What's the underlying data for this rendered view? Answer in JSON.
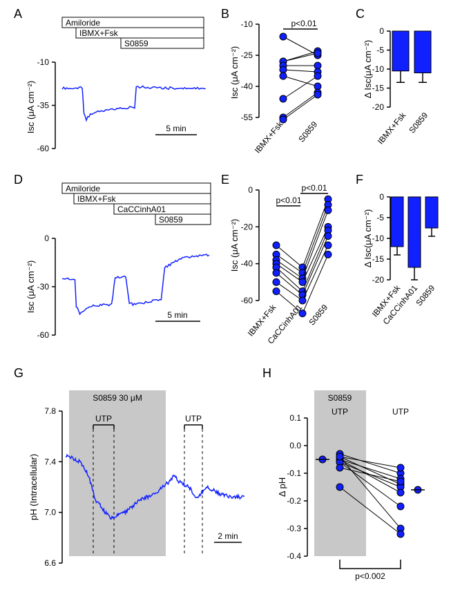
{
  "labels": {
    "A": "A",
    "B": "B",
    "C": "C",
    "D": "D",
    "E": "E",
    "F": "F",
    "G": "G",
    "H": "H",
    "isc_label": "Isc (μA cm⁻²)",
    "disc_label": "Δ Isc(μA cm⁻²)",
    "ph_label": "pH (Intracellular)",
    "dph_label": "Δ pH",
    "five_min": "5 min",
    "two_min": "2 min",
    "amiloride": "Amiloride",
    "ibmxfsk": "IBMX+Fsk",
    "s0859": "S0859",
    "caccinh": "CaCCinhA01",
    "s0859_30": "S0859 30 μM",
    "utp": "UTP",
    "p001": "p<0.01",
    "p0002": "p<0.002"
  },
  "panelA": {
    "y_ticks": [
      -10,
      -35,
      -60
    ],
    "trace": [
      [
        0,
        -25
      ],
      [
        25,
        -25
      ],
      [
        27,
        -40
      ],
      [
        30,
        -43
      ],
      [
        35,
        -40
      ],
      [
        50,
        -38
      ],
      [
        70,
        -37
      ],
      [
        90,
        -36
      ],
      [
        92,
        -24
      ],
      [
        120,
        -25
      ],
      [
        150,
        -25
      ],
      [
        180,
        -25
      ]
    ]
  },
  "panelB": {
    "y_ticks": [
      -10,
      -25,
      -40,
      -55
    ],
    "groups": [
      "IBMX+Fsk",
      "S0859"
    ],
    "pairs": [
      [
        -16,
        -25
      ],
      [
        -28,
        -23
      ],
      [
        -28,
        -24
      ],
      [
        -30,
        -30
      ],
      [
        -32,
        -33
      ],
      [
        -35,
        -40
      ],
      [
        -46,
        -35
      ],
      [
        -55,
        -43
      ],
      [
        -56,
        -44
      ]
    ]
  },
  "panelC": {
    "y_ticks": [
      0,
      -5,
      -10,
      -15,
      -20
    ],
    "bars": [
      {
        "x": "IBMX+Fsk",
        "v": -10.5,
        "sd": 3
      },
      {
        "x": "S0859",
        "v": -11,
        "sd": 2.5
      }
    ]
  },
  "panelD": {
    "y_ticks": [
      0,
      -30,
      -60
    ],
    "trace": [
      [
        0,
        -25
      ],
      [
        18,
        -25
      ],
      [
        20,
        -42
      ],
      [
        25,
        -47
      ],
      [
        40,
        -42
      ],
      [
        70,
        -41
      ],
      [
        75,
        -24
      ],
      [
        90,
        -24
      ],
      [
        95,
        -40
      ],
      [
        100,
        -41
      ],
      [
        140,
        -38
      ],
      [
        145,
        -18
      ],
      [
        170,
        -12
      ],
      [
        210,
        -10
      ]
    ]
  },
  "panelE": {
    "y_ticks": [
      0,
      -20,
      -40,
      -60
    ],
    "groups": [
      "IBMX+Fsk",
      "CaCCinhA01",
      "S0859"
    ],
    "triples": [
      [
        -30,
        -42,
        -5
      ],
      [
        -35,
        -45,
        -8
      ],
      [
        -38,
        -48,
        -11
      ],
      [
        -40,
        -50,
        -20
      ],
      [
        -42,
        -55,
        -22
      ],
      [
        -45,
        -57,
        -25
      ],
      [
        -50,
        -60,
        -30
      ],
      [
        -55,
        -67,
        -35
      ]
    ]
  },
  "panelF": {
    "y_ticks": [
      0,
      -5,
      -10,
      -15,
      -20
    ],
    "bars": [
      {
        "x": "IBMX+Fsk",
        "v": -12,
        "sd": 2
      },
      {
        "x": "CaCCinhA01",
        "v": -17,
        "sd": 3
      },
      {
        "x": "S0859",
        "v": -7.5,
        "sd": 2
      }
    ]
  },
  "panelG": {
    "y_ticks": [
      7.8,
      7.4,
      7.0,
      6.6
    ],
    "trace": [
      [
        0,
        7.45
      ],
      [
        20,
        7.4
      ],
      [
        30,
        7.3
      ],
      [
        40,
        7.1
      ],
      [
        60,
        6.95
      ],
      [
        80,
        7.0
      ],
      [
        100,
        7.1
      ],
      [
        120,
        7.15
      ],
      [
        140,
        7.25
      ],
      [
        145,
        7.3
      ],
      [
        150,
        7.25
      ],
      [
        165,
        7.2
      ],
      [
        175,
        7.12
      ],
      [
        190,
        7.2
      ],
      [
        205,
        7.15
      ],
      [
        220,
        7.12
      ],
      [
        240,
        7.12
      ]
    ]
  },
  "panelH": {
    "y_ticks": [
      0.1,
      0,
      -0.1,
      -0.2,
      -0.3,
      -0.4
    ],
    "pairs": [
      [
        -0.03,
        -0.1
      ],
      [
        -0.04,
        -0.08
      ],
      [
        -0.05,
        -0.12
      ],
      [
        -0.04,
        -0.14
      ],
      [
        -0.06,
        -0.15
      ],
      [
        -0.05,
        -0.17
      ],
      [
        -0.06,
        -0.22
      ],
      [
        -0.04,
        -0.3
      ],
      [
        -0.15,
        -0.32
      ],
      [
        -0.08,
        -0.13
      ]
    ],
    "mean1": -0.05,
    "mean2": -0.16
  },
  "colors": {
    "trace": "#1020ff",
    "fill": "#1020ff",
    "grey": "#c8c8c8",
    "black": "#000000",
    "white": "#ffffff"
  }
}
